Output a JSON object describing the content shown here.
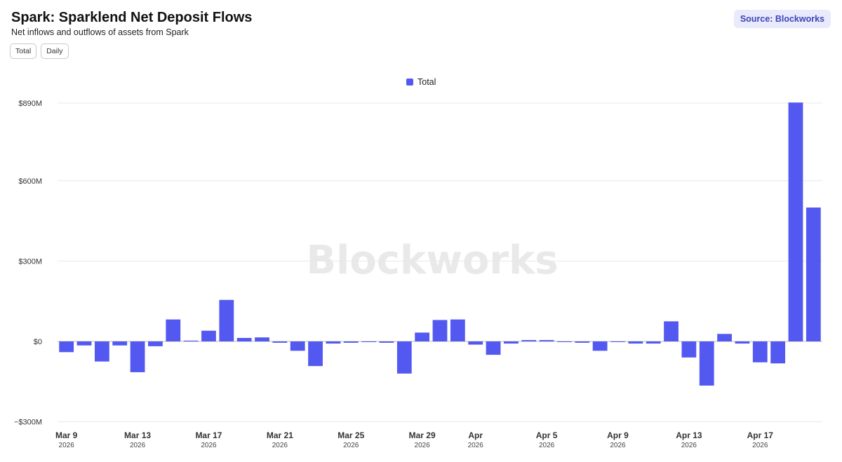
{
  "header": {
    "title": "Spark: Sparklend Net Deposit Flows",
    "subtitle": "Net inflows and outflows of assets from Spark"
  },
  "toggles": [
    {
      "label": "Total"
    },
    {
      "label": "Daily"
    }
  ],
  "source_label": "Source: Blockworks",
  "watermark": "Blockworks",
  "colors": {
    "bar": "#5359f0",
    "grid": "#e8e8e8",
    "zero_line": "#bdbdbd"
  },
  "chart_data": {
    "type": "bar",
    "legend": {
      "position": "top-center"
    },
    "series": [
      {
        "name": "Total",
        "color": "#5359f0",
        "values": [
          -40,
          -15,
          -75,
          -15,
          -115,
          -18,
          82,
          3,
          40,
          155,
          13,
          15,
          -5,
          -35,
          -92,
          -8,
          -5,
          -2,
          -5,
          -120,
          33,
          80,
          82,
          -12,
          -50,
          -8,
          5,
          5,
          -2,
          -5,
          -35,
          -2,
          -8,
          -8,
          75,
          -60,
          -165,
          28,
          -8,
          -78,
          -82,
          892,
          500
        ]
      }
    ],
    "x_tick_labels": [
      {
        "index": 0,
        "label": "Mar 9",
        "sub": "2026"
      },
      {
        "index": 4,
        "label": "Mar 13",
        "sub": "2026"
      },
      {
        "index": 8,
        "label": "Mar 17",
        "sub": "2026"
      },
      {
        "index": 12,
        "label": "Mar 21",
        "sub": "2026"
      },
      {
        "index": 16,
        "label": "Mar 25",
        "sub": "2026"
      },
      {
        "index": 20,
        "label": "Mar 29",
        "sub": "2026"
      },
      {
        "index": 23,
        "label": "Apr",
        "sub": "2026"
      },
      {
        "index": 27,
        "label": "Apr 5",
        "sub": "2026"
      },
      {
        "index": 31,
        "label": "Apr 9",
        "sub": "2026"
      },
      {
        "index": 35,
        "label": "Apr 13",
        "sub": "2026"
      },
      {
        "index": 39,
        "label": "Apr 17",
        "sub": "2026"
      }
    ],
    "y_ticks": [
      {
        "value": 890,
        "label": "$890M"
      },
      {
        "value": 600,
        "label": "$600M"
      },
      {
        "value": 300,
        "label": "$300M"
      },
      {
        "value": 0,
        "label": "$0"
      },
      {
        "value": -300,
        "label": "−$300M"
      }
    ],
    "ylim": [
      -300,
      890
    ],
    "grid": true
  }
}
